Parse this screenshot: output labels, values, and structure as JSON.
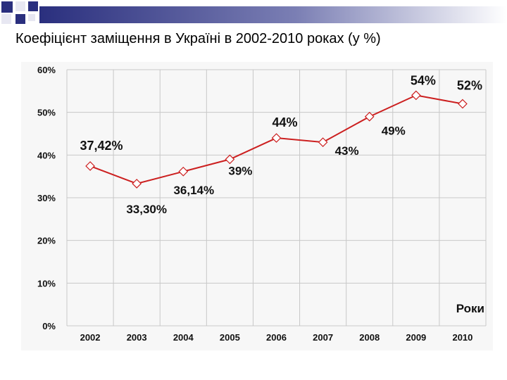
{
  "title": "Коефіцієнт заміщення в Україні в 2002-2010 роках (у %)",
  "colors": {
    "line": "#cc1f1f",
    "grid": "#c8c8c8",
    "bar_dark": "#2a2f7e",
    "bar_light": "#e7e7f2"
  },
  "chart_data": {
    "type": "line",
    "title": "",
    "xlabel": "Роки",
    "ylabel": "",
    "categories": [
      "2002",
      "2003",
      "2004",
      "2005",
      "2006",
      "2007",
      "2008",
      "2009",
      "2010"
    ],
    "values": [
      37.42,
      33.3,
      36.14,
      39,
      44,
      43,
      49,
      54,
      52
    ],
    "data_labels": [
      "37,42%",
      "33,30%",
      "36,14%",
      "39%",
      "44%",
      "43%",
      "49%",
      "54%",
      "52%"
    ],
    "ylim": [
      0,
      60
    ],
    "yticks": [
      "0%",
      "10%",
      "20%",
      "30%",
      "40%",
      "50%",
      "60%"
    ],
    "grid": true,
    "marker": "diamond"
  }
}
